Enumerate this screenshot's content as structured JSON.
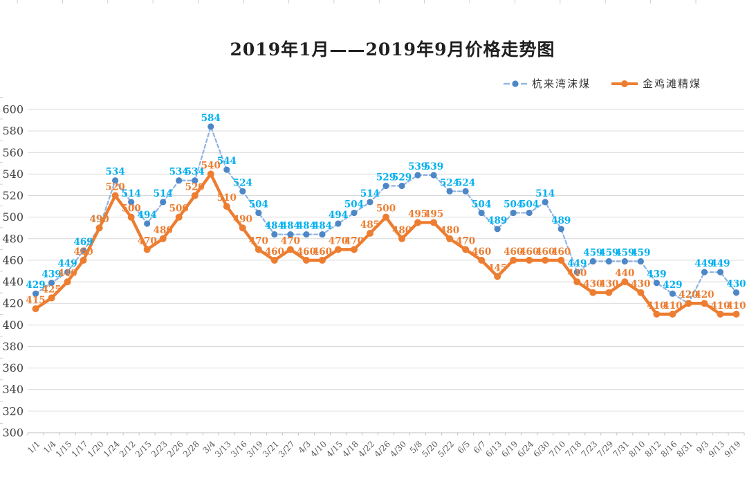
{
  "title": "2019年1月——2019年9月价格走势图",
  "chart_data": {
    "type": "line",
    "title": "2019年1月——2019年9月价格走势图",
    "xlabel": "",
    "ylabel": "",
    "ylim": [
      300,
      600
    ],
    "yticks": [
      600,
      580,
      560,
      540,
      520,
      500,
      480,
      460,
      440,
      420,
      400,
      380,
      360,
      340,
      320,
      300
    ],
    "grid": true,
    "legend_position": "top-right",
    "categories": [
      "1/1",
      "1/4",
      "1/15",
      "1/17",
      "1/20",
      "1/24",
      "2/12",
      "2/15",
      "2/23",
      "2/26",
      "2/28",
      "3/4",
      "3/13",
      "3/16",
      "3/19",
      "3/21",
      "3/27",
      "4/3",
      "4/10",
      "4/15",
      "4/18",
      "4/22",
      "4/26",
      "4/30",
      "5/8",
      "5/20",
      "5/22",
      "6/5",
      "6/7",
      "6/13",
      "6/19",
      "6/24",
      "6/30",
      "7/10",
      "7/18",
      "7/23",
      "7/29",
      "7/31",
      "8/10",
      "8/12",
      "8/16",
      "8/31",
      "9/3",
      "9/13",
      "9/19"
    ],
    "series": [
      {
        "name": "杭来湾沫煤",
        "line_style": "dashed",
        "line_color": "#8FB3E3",
        "dot_color": "#4E87C6",
        "label_color": "#00B0F0",
        "values": [
          429,
          439,
          449,
          469,
          490,
          534,
          514,
          494,
          514,
          534,
          534,
          584,
          544,
          524,
          504,
          484,
          484,
          484,
          484,
          494,
          504,
          514,
          529,
          529,
          539,
          539,
          524,
          524,
          504,
          489,
          504,
          504,
          514,
          489,
          449,
          459,
          459,
          459,
          459,
          439,
          429,
          420,
          449,
          449,
          430
        ]
      },
      {
        "name": "金鸡滩精煤",
        "line_style": "solid",
        "line_color": "#ED7D31",
        "dot_color": "#ED7D31",
        "label_color": "#ED7D31",
        "values": [
          415,
          425,
          440,
          460,
          490,
          520,
          500,
          470,
          480,
          500,
          520,
          540,
          510,
          490,
          470,
          460,
          470,
          460,
          460,
          470,
          470,
          485,
          500,
          480,
          495,
          495,
          480,
          470,
          460,
          445,
          460,
          460,
          460,
          460,
          440,
          430,
          430,
          440,
          430,
          410,
          410,
          420,
          420,
          410,
          410
        ]
      }
    ],
    "axis_colors": {
      "grid": "#D9D9D9",
      "axis": "#BFBFBF",
      "ytick_text": "#404040",
      "xtick_text": "#595959"
    }
  }
}
